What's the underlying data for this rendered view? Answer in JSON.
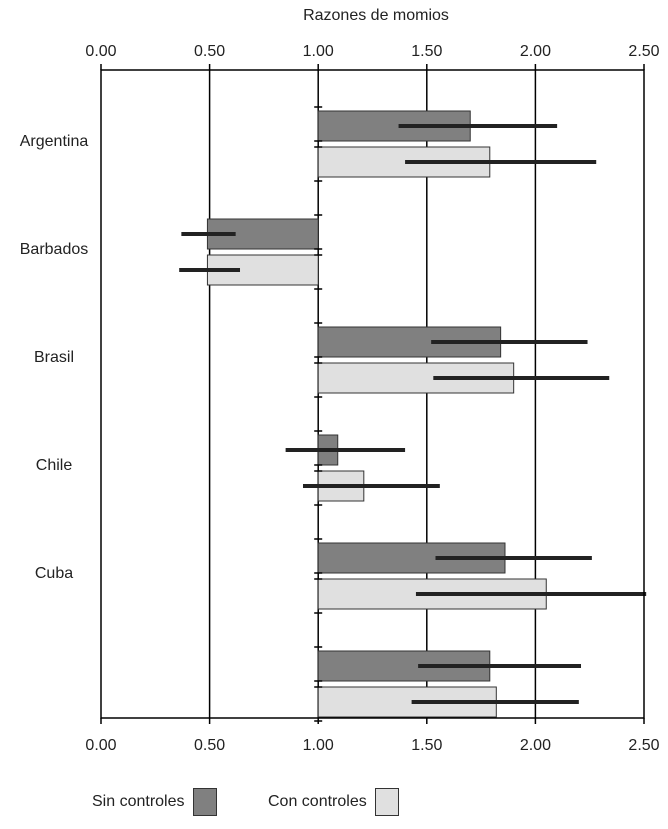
{
  "chart_data": {
    "type": "bar",
    "orientation": "horizontal",
    "title": "",
    "xlabel": "Razones de momios",
    "ylabel": "",
    "xlim": [
      0,
      2.5
    ],
    "x_ticks": [
      "0.00",
      "0.50",
      "1.00",
      "1.50",
      "2.00",
      "2.50"
    ],
    "reference_value": 1.0,
    "categories": [
      "Argentina",
      "Barbados",
      "Brasil",
      "Chile",
      "Cuba",
      ""
    ],
    "series": [
      {
        "name": "Sin controles",
        "color": "#808080",
        "values": [
          1.7,
          0.49,
          1.84,
          1.09,
          1.86,
          1.79
        ],
        "ci_low": [
          1.37,
          0.37,
          1.52,
          0.85,
          1.54,
          1.46
        ],
        "ci_high": [
          2.1,
          0.62,
          2.24,
          1.4,
          2.26,
          2.21
        ]
      },
      {
        "name": "Con controles",
        "color": "#e0e0e0",
        "values": [
          1.79,
          0.49,
          1.9,
          1.21,
          2.05,
          1.82
        ],
        "ci_low": [
          1.4,
          0.36,
          1.53,
          0.93,
          1.45,
          1.43
        ],
        "ci_high": [
          2.28,
          0.64,
          2.34,
          1.56,
          2.51,
          2.2
        ]
      }
    ],
    "grid": "vertical lines at 0.50, 1.00, 1.50, 2.00",
    "legend_position": "bottom"
  }
}
